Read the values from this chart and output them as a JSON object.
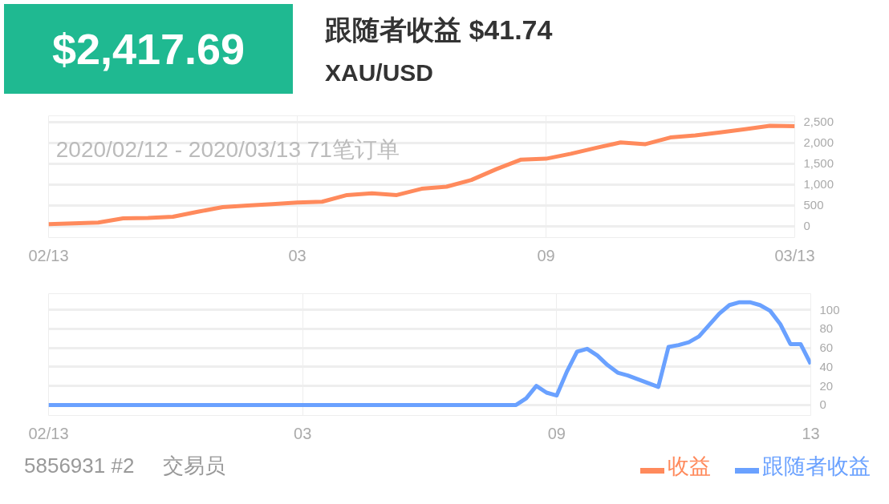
{
  "chart_data": [
    {
      "type": "line",
      "title": "跟随者收益 $41.74",
      "subtitle": "XAU/USD",
      "annotations": [
        "$2,417.69",
        "2020/02/12 - 2020/03/13  71笔订单"
      ],
      "categories": [
        "02/13",
        null,
        null,
        null,
        null,
        null,
        null,
        null,
        null,
        null,
        "03",
        null,
        null,
        null,
        null,
        null,
        null,
        null,
        null,
        null,
        "09",
        null,
        null,
        null,
        null,
        null,
        null,
        null,
        null,
        null,
        "03/13"
      ],
      "series": [
        {
          "name": "收益",
          "color": "#ff8a5c",
          "values": [
            50,
            70,
            90,
            190,
            200,
            230,
            350,
            460,
            500,
            530,
            570,
            590,
            750,
            790,
            750,
            900,
            950,
            1110,
            1370,
            1600,
            1620,
            1740,
            1880,
            2010,
            1970,
            2130,
            2180,
            2250,
            2330,
            2410,
            2400
          ]
        }
      ],
      "ylim": [
        -270,
        2650
      ],
      "yticks": [
        0,
        {
          "value": 500,
          "label": "500"
        },
        {
          "value": 1000,
          "label": "1,000"
        },
        {
          "value": 1500,
          "label": "1,500"
        },
        {
          "value": 2000,
          "label": "2,000"
        },
        {
          "value": 2500,
          "label": "2,500"
        }
      ],
      "grid": true,
      "legend": "bottom right"
    },
    {
      "type": "line",
      "annotations": [
        "5856931 #2",
        "交易员"
      ],
      "categories": [
        "02/13",
        null,
        null,
        null,
        null,
        null,
        null,
        null,
        null,
        null,
        null,
        null,
        null,
        null,
        null,
        null,
        null,
        null,
        null,
        null,
        null,
        null,
        null,
        null,
        null,
        "03",
        null,
        null,
        null,
        null,
        null,
        null,
        null,
        null,
        null,
        null,
        null,
        null,
        null,
        null,
        null,
        null,
        null,
        null,
        null,
        null,
        null,
        null,
        null,
        null,
        "09",
        null,
        null,
        null,
        null,
        null,
        null,
        null,
        null,
        null,
        null,
        null,
        null,
        null,
        null,
        null,
        null,
        null,
        null,
        null,
        null,
        null,
        null,
        null,
        null,
        "13"
      ],
      "series": [
        {
          "name": "跟随者收益",
          "color": "#6aa1ff",
          "values": [
            0,
            0,
            0,
            0,
            0,
            0,
            0,
            0,
            0,
            0,
            0,
            0,
            0,
            0,
            0,
            0,
            0,
            0,
            0,
            0,
            0,
            0,
            0,
            0,
            0,
            0,
            0,
            0,
            0,
            0,
            0,
            0,
            0,
            0,
            0,
            0,
            0,
            0,
            0,
            0,
            0,
            0,
            0,
            0,
            0,
            0,
            0,
            7,
            20,
            13,
            10,
            35,
            56,
            59,
            52,
            42,
            34,
            31,
            27,
            23,
            19,
            61,
            63,
            66,
            72,
            84,
            96,
            105,
            108,
            108,
            105,
            99,
            85,
            64,
            64,
            43
          ]
        }
      ],
      "ylim": [
        -11,
        117
      ],
      "yticks": [
        0,
        20,
        40,
        60,
        80,
        100
      ],
      "grid": true,
      "legend": "bottom right"
    }
  ]
}
